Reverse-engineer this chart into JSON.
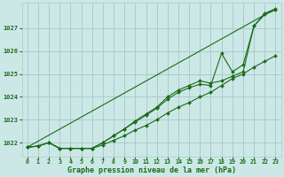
{
  "title": "Graphe pression niveau de la mer (hPa)",
  "background_color": "#cce8e6",
  "grid_color": "#aacccc",
  "line_color": "#1a6b1a",
  "xlim": [
    -0.5,
    23.5
  ],
  "ylim": [
    1021.4,
    1028.1
  ],
  "yticks": [
    1022,
    1023,
    1024,
    1025,
    1026,
    1027
  ],
  "xticks": [
    0,
    1,
    2,
    3,
    4,
    5,
    6,
    7,
    8,
    9,
    10,
    11,
    12,
    13,
    14,
    15,
    16,
    17,
    18,
    19,
    20,
    21,
    22,
    23
  ],
  "series": [
    [
      1021.8,
      1021.85,
      1022.0,
      1021.75,
      1021.75,
      1021.75,
      1021.75,
      1021.9,
      1022.1,
      1022.3,
      1022.55,
      1022.75,
      1023.0,
      1023.3,
      1023.55,
      1023.75,
      1024.0,
      1024.2,
      1024.5,
      1024.8,
      1025.0,
      1025.3,
      1025.55,
      1025.8
    ],
    [
      1021.8,
      1021.85,
      1022.0,
      1021.75,
      1021.75,
      1021.75,
      1021.75,
      1022.0,
      1022.3,
      1022.6,
      1022.9,
      1023.2,
      1023.5,
      1023.9,
      1024.2,
      1024.4,
      1024.55,
      1024.5,
      1025.9,
      1025.1,
      1025.4,
      1027.1,
      1027.6,
      1027.8
    ],
    [
      1021.8,
      1021.85,
      1022.0,
      1021.75,
      1021.75,
      1021.75,
      1021.75,
      1022.0,
      1022.3,
      1022.6,
      1022.95,
      1023.25,
      1023.55,
      1024.0,
      1024.3,
      1024.5,
      1024.7,
      1024.6,
      1024.7,
      1024.9,
      1025.1,
      1027.1,
      1027.65,
      1027.85
    ]
  ],
  "straight_line": [
    1021.8,
    1027.85
  ]
}
